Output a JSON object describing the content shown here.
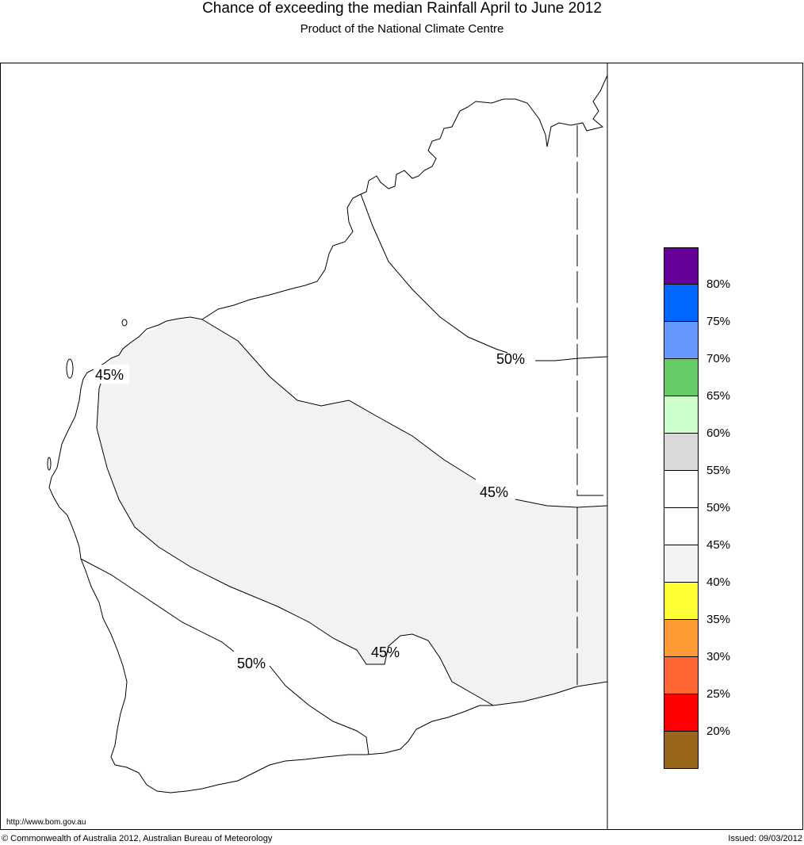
{
  "header": {
    "title": "Chance of exceeding the median Rainfall April to June 2012",
    "subtitle": "Product of the National Climate Centre"
  },
  "map": {
    "region": "Western Australia",
    "contour_labels": [
      "45%",
      "50%",
      "45%",
      "50%",
      "45%"
    ],
    "shaded_band_color": "#f2f2f2",
    "line_color": "#000000"
  },
  "legend": {
    "swatches": [
      {
        "color": "#660099"
      },
      {
        "color": "#0066ff"
      },
      {
        "color": "#6699ff"
      },
      {
        "color": "#66cc66"
      },
      {
        "color": "#ccffcc"
      },
      {
        "color": "#d9d9d9"
      },
      {
        "color": "#ffffff"
      },
      {
        "color": "#ffffff"
      },
      {
        "color": "#f2f2f2"
      },
      {
        "color": "#ffff33"
      },
      {
        "color": "#ff9933"
      },
      {
        "color": "#ff6633"
      },
      {
        "color": "#ff0000"
      },
      {
        "color": "#996619"
      }
    ],
    "labels": [
      "80%",
      "75%",
      "70%",
      "65%",
      "60%",
      "55%",
      "50%",
      "45%",
      "40%",
      "35%",
      "30%",
      "25%",
      "20%"
    ]
  },
  "footer": {
    "url": "http://www.bom.gov.au",
    "copyright": "© Commonwealth of Australia 2012, Australian Bureau of Meteorology",
    "issued": "Issued: 09/03/2012"
  }
}
